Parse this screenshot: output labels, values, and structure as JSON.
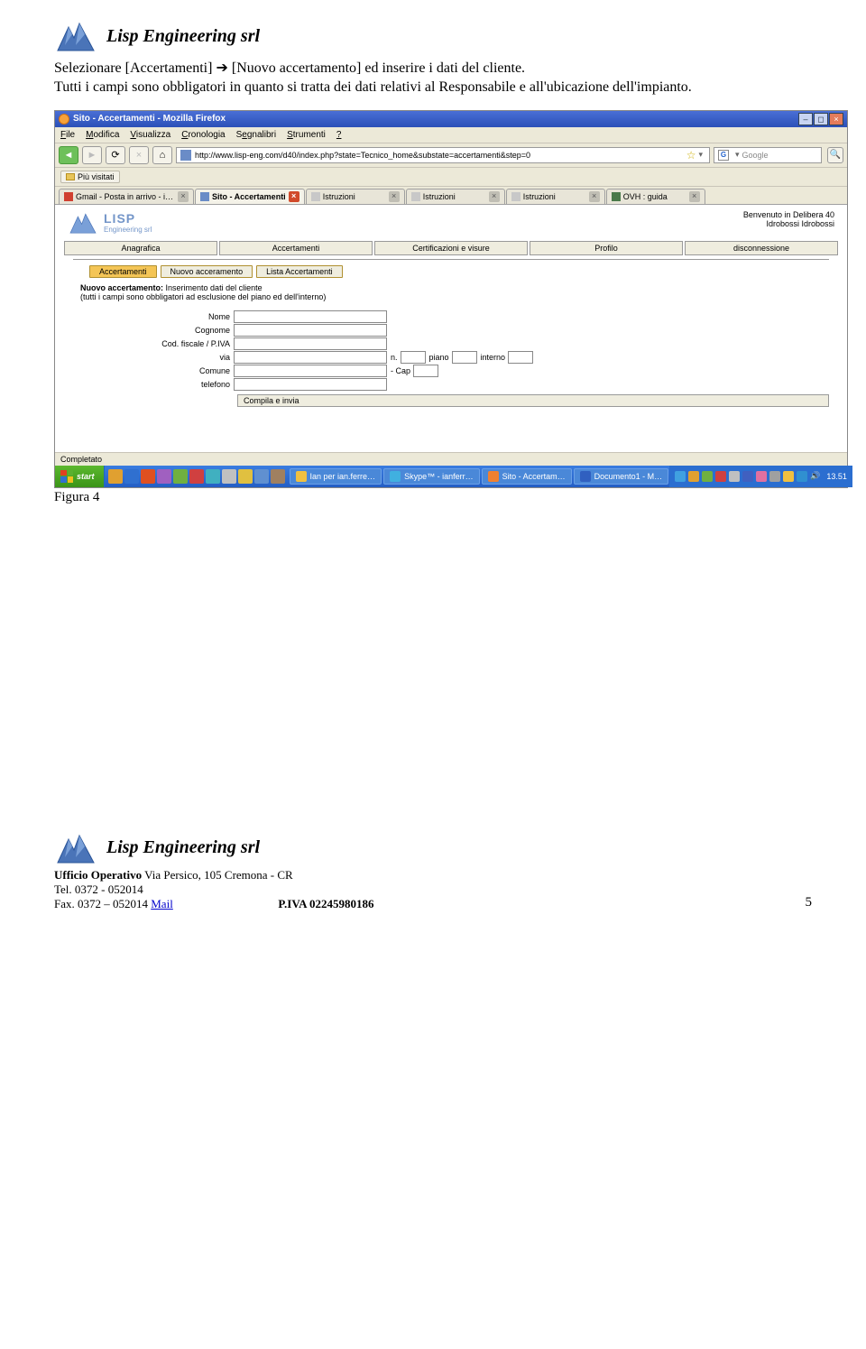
{
  "doc": {
    "company": "Lisp Engineering srl",
    "para1a": "Selezionare [Accertamenti] ",
    "para1b": " [Nuovo accertamento]  ed inserire i dati del cliente.",
    "para2": "Tutti i campi sono obbligatori in quanto si tratta dei dati relativi al Responsabile e all'ubicazione dell'impianto.",
    "figure_caption": "Figura 4",
    "footer": {
      "office_label": "Ufficio Operativo",
      "office_addr": " Via Persico, 105 Cremona - CR",
      "tel": "Tel.  0372 - 052014",
      "fax": "Fax. 0372 – 052014 ",
      "mail": "Mail",
      "piva": "P.IVA 02245980186",
      "page": "5"
    }
  },
  "screenshot": {
    "title": "Sito - Accertamenti - Mozilla Firefox",
    "menus": [
      "File",
      "Modifica",
      "Visualizza",
      "Cronologia",
      "Segnalibri",
      "Strumenti",
      "?"
    ],
    "url": "http://www.lisp-eng.com/d40/index.php?state=Tecnico_home&substate=accertamenti&step=0",
    "search_placeholder": "Google",
    "bookmarks_label": "Più visitati",
    "tabs": [
      {
        "label": "Gmail - Posta in arrivo - ianferr@g…",
        "fav_color": "#d04030",
        "close": true
      },
      {
        "label": "Sito - Accertamenti",
        "fav_color": "#6a8cc7",
        "active": true,
        "close": "red"
      },
      {
        "label": "Istruzioni",
        "fav_color": "#c8c8c8",
        "close": true
      },
      {
        "label": "Istruzioni",
        "fav_color": "#c8c8c8",
        "close": true
      },
      {
        "label": "Istruzioni",
        "fav_color": "#c8c8c8",
        "close": true
      },
      {
        "label": "OVH : guida",
        "fav_color": "#4a7a4a",
        "close": true
      }
    ],
    "welcome_line1": "Benvenuto in Delibera 40",
    "welcome_line2": "Idrobossi Idrobossi",
    "nav_main": [
      "Anagrafica",
      "Accertamenti",
      "Certificazioni e visure",
      "Profilo",
      "disconnessione"
    ],
    "nav_sub": [
      {
        "label": "Accertamenti",
        "active": true
      },
      {
        "label": "Nuovo acceramento",
        "active": false
      },
      {
        "label": "Lista Accertamenti",
        "active": false
      }
    ],
    "form_title_bold": "Nuovo accertamento:",
    "form_title_rest": " Inserimento dati del cliente",
    "form_title_line2": "(tutti i campi sono obbligatori ad esclusione del piano ed dell'interno)",
    "fields": {
      "nome": "Nome",
      "cognome": "Cognome",
      "codfisc": "Cod. fiscale / P.IVA",
      "via": "via",
      "n": "n.",
      "piano": "piano",
      "interno": "interno",
      "comune": "Comune",
      "cap": "- Cap",
      "telefono": "telefono"
    },
    "submit": "Compila e invia",
    "status": "Completato",
    "taskbar": {
      "start": "start",
      "tasks": [
        {
          "label": "Ian per ian.ferre…",
          "color": "#f0c040"
        },
        {
          "label": "Skype™ - ianferr…",
          "color": "#40b0e0"
        },
        {
          "label": "Sito - Accertam…",
          "color": "#f08030"
        },
        {
          "label": "Documento1 - M…",
          "color": "#3060c0"
        }
      ],
      "clock": "13.51"
    }
  },
  "colors": {
    "ql": [
      "#e0a030",
      "#3070d0",
      "#e05020",
      "#a060c0",
      "#70b040",
      "#d04040",
      "#40b0c0",
      "#c0c0c0",
      "#e0c040",
      "#6090d0",
      "#a08060"
    ],
    "tray": [
      "#40a0e0",
      "#e0a030",
      "#70b040",
      "#d04040",
      "#c0c0c0",
      "#4060c0",
      "#e070a0",
      "#a0a0a0",
      "#f0c040",
      "#3090d0"
    ]
  }
}
